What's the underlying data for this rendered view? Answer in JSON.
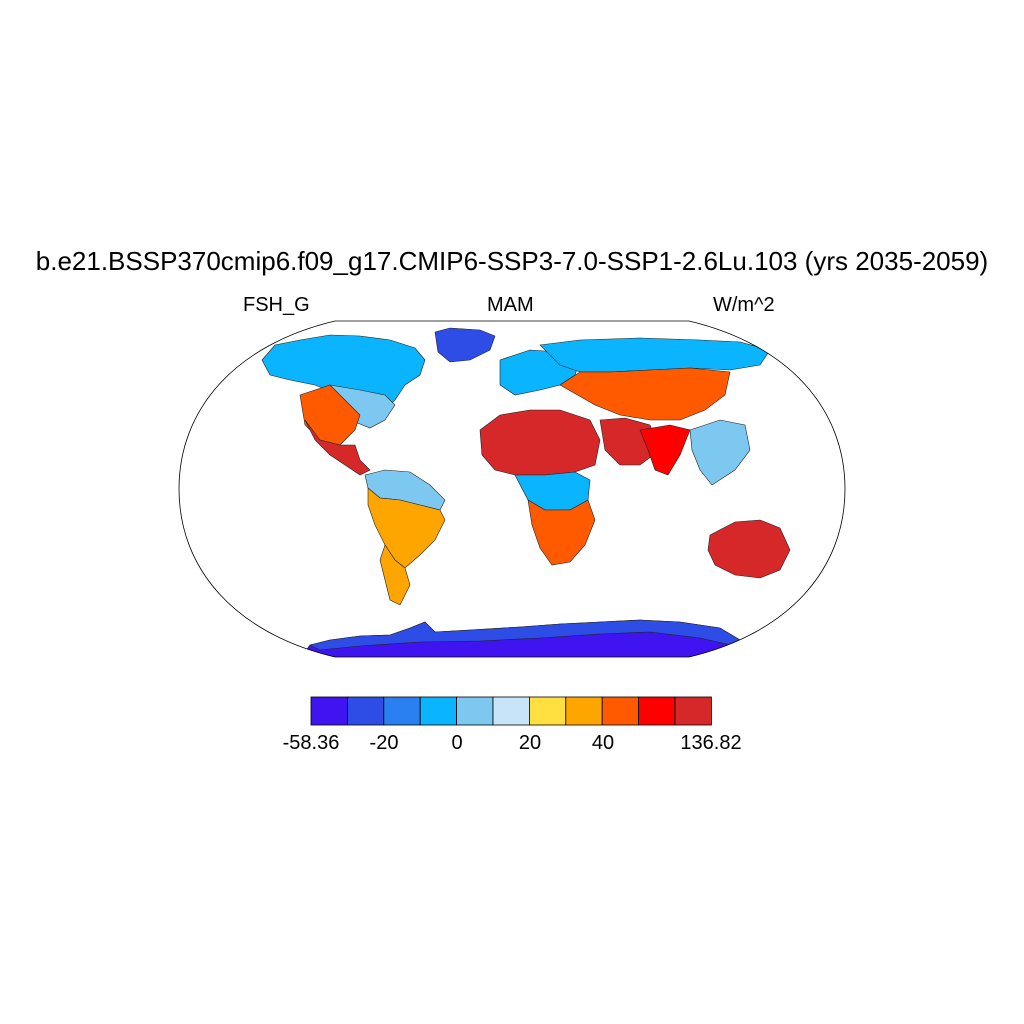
{
  "title": "b.e21.BSSP370cmip6.f09_g17.CMIP6-SSP3-7.0-SSP1-2.6Lu.103 (yrs 2035-2059)",
  "left_label": "FSH_G",
  "center_label": "MAM",
  "right_label": "W/m^2",
  "colorbar": {
    "colors": [
      "#3f14f0",
      "#2e4ce6",
      "#2a80f0",
      "#0ab4ff",
      "#7dc8f0",
      "#c8e4f8",
      "#ffe040",
      "#ffa500",
      "#ff5a00",
      "#ff0000",
      "#d62828"
    ],
    "tick_labels": [
      "-58.36",
      "-20",
      "0",
      "20",
      "40",
      "136.82"
    ]
  },
  "regions": [
    {
      "name": "antarctica",
      "color": "#3f14f0"
    },
    {
      "name": "antarctica-coast",
      "color": "#2e4ce6"
    },
    {
      "name": "greenland",
      "color": "#2e4ce6"
    },
    {
      "name": "north-america-north",
      "color": "#0ab4ff"
    },
    {
      "name": "north-america-central",
      "color": "#7dc8f0"
    },
    {
      "name": "us-southwest",
      "color": "#ff5a00"
    },
    {
      "name": "mexico",
      "color": "#d62828"
    },
    {
      "name": "amazon",
      "color": "#7dc8f0"
    },
    {
      "name": "south-america-east",
      "color": "#ffa500"
    },
    {
      "name": "patagonia",
      "color": "#ffa500"
    },
    {
      "name": "europe",
      "color": "#0ab4ff"
    },
    {
      "name": "siberia",
      "color": "#0ab4ff"
    },
    {
      "name": "central-asia",
      "color": "#ff5a00"
    },
    {
      "name": "sahara",
      "color": "#d62828"
    },
    {
      "name": "arabia",
      "color": "#d62828"
    },
    {
      "name": "india",
      "color": "#ff0000"
    },
    {
      "name": "congo",
      "color": "#0ab4ff"
    },
    {
      "name": "southern-africa",
      "color": "#ff5a00"
    },
    {
      "name": "southeast-asia",
      "color": "#7dc8f0"
    },
    {
      "name": "australia",
      "color": "#d62828"
    }
  ]
}
